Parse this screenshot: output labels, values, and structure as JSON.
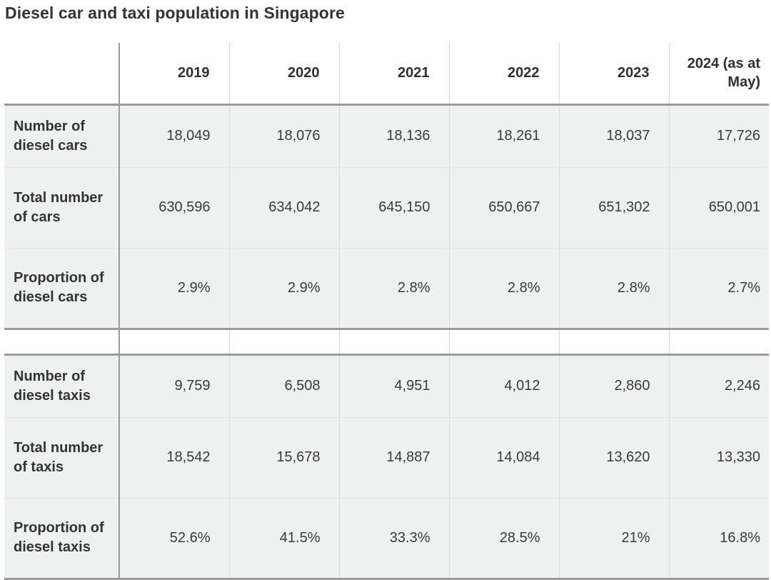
{
  "title": "Diesel car and taxi population in Singapore",
  "chart_data": {
    "type": "table",
    "title": "Diesel car and taxi population in Singapore",
    "columns": [
      "2019",
      "2020",
      "2021",
      "2022",
      "2023",
      "2024 (as at May)"
    ],
    "sections": [
      {
        "rows": [
          {
            "label": "Number of diesel cars",
            "values": [
              "18,049",
              "18,076",
              "18,136",
              "18,261",
              "18,037",
              "17,726"
            ]
          },
          {
            "label": "Total number of cars",
            "values": [
              "630,596",
              "634,042",
              "645,150",
              "650,667",
              "651,302",
              "650,001"
            ]
          },
          {
            "label": "Proportion of diesel cars",
            "values": [
              "2.9%",
              "2.9%",
              "2.8%",
              "2.8%",
              "2.8%",
              "2.7%"
            ]
          }
        ]
      },
      {
        "rows": [
          {
            "label": "Number of diesel taxis",
            "values": [
              "9,759",
              "6,508",
              "4,951",
              "4,012",
              "2,860",
              "2,246"
            ]
          },
          {
            "label": "Total number of taxis",
            "values": [
              "18,542",
              "15,678",
              "14,887",
              "14,084",
              "13,620",
              "13,330"
            ]
          },
          {
            "label": "Proportion of diesel taxis",
            "values": [
              "52.6%",
              "41.5%",
              "33.3%",
              "28.5%",
              "21%",
              "16.8%"
            ]
          }
        ]
      }
    ]
  }
}
